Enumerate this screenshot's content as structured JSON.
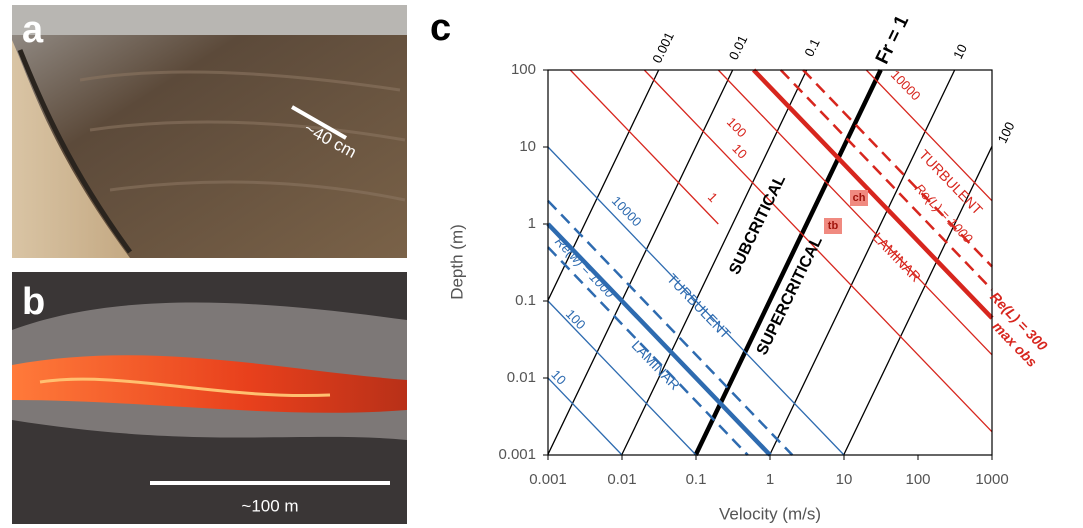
{
  "panels": [
    {
      "letter": "a",
      "scale": "~40 cm"
    },
    {
      "letter": "b",
      "scale": "~100 m"
    }
  ],
  "chart_data": {
    "type": "loglines",
    "panel": "c",
    "x_label": "Velocity (m/s)",
    "y_label": "Depth (m)",
    "xlim": [
      0.001,
      1000
    ],
    "ylim": [
      0.001,
      100
    ],
    "log": true,
    "xticks": [
      0.001,
      0.01,
      0.1,
      1,
      10,
      100,
      1000
    ],
    "yticks": [
      0.001,
      0.01,
      0.1,
      1,
      10,
      100
    ],
    "lines": [
      {
        "color": "#000000",
        "label": "0.001",
        "x": [
          0.001,
          0.0313
        ],
        "y": [
          0.102,
          100
        ]
      },
      {
        "color": "#000000",
        "label": "0.01",
        "x": [
          0.001,
          0.313
        ],
        "y": [
          0.00102,
          100
        ]
      },
      {
        "color": "#000000",
        "label": "0.1",
        "x": [
          0.0099,
          3.13
        ],
        "y": [
          0.001,
          100
        ]
      },
      {
        "color": "#000000",
        "label": "Fr = 1",
        "heavy": true,
        "x": [
          0.099,
          31.3
        ],
        "y": [
          0.001,
          100
        ]
      },
      {
        "color": "#000000",
        "label": "10",
        "x": [
          0.99,
          313
        ],
        "y": [
          0.001,
          100
        ]
      },
      {
        "color": "#000000",
        "label": "100",
        "x": [
          9.9,
          1000
        ],
        "y": [
          0.001,
          10.2
        ]
      },
      {
        "color": "#d7261e",
        "label": "1",
        "x": [
          0.002,
          0.2
        ],
        "y": [
          100,
          1
        ]
      },
      {
        "color": "#d7261e",
        "label": "10",
        "x": [
          0.02,
          1000
        ],
        "y": [
          100,
          0.002
        ]
      },
      {
        "color": "#d7261e",
        "label": "100",
        "x": [
          0.2,
          1000
        ],
        "y": [
          100,
          0.02
        ]
      },
      {
        "color": "#d7261e",
        "heavy": true,
        "x": [
          0.6,
          1000
        ],
        "y": [
          100,
          0.06
        ]
      },
      {
        "color": "#d7261e",
        "dash": true,
        "x": [
          1.4,
          1000
        ],
        "y": [
          100,
          0.14
        ]
      },
      {
        "color": "#d7261e",
        "dash": true,
        "x": [
          2.8,
          1000
        ],
        "y": [
          100,
          0.28
        ]
      },
      {
        "color": "#d7261e",
        "label": "10000",
        "x": [
          20,
          1000
        ],
        "y": [
          100,
          2
        ]
      },
      {
        "color": "#2e6bb0",
        "label": "10",
        "x": [
          0.001,
          0.01
        ],
        "y": [
          0.01,
          0.001
        ]
      },
      {
        "color": "#2e6bb0",
        "label": "100",
        "x": [
          0.001,
          0.1
        ],
        "y": [
          0.1,
          0.001
        ]
      },
      {
        "color": "#2e6bb0",
        "dash": true,
        "x": [
          0.001,
          0.5
        ],
        "y": [
          0.5,
          0.001
        ]
      },
      {
        "color": "#2e6bb0",
        "heavy": true,
        "x": [
          0.001,
          1
        ],
        "y": [
          1,
          0.001
        ]
      },
      {
        "color": "#2e6bb0",
        "dash": true,
        "x": [
          0.001,
          2
        ],
        "y": [
          2,
          0.001
        ]
      },
      {
        "color": "#2e6bb0",
        "label": "10000",
        "x": [
          0.001,
          10
        ],
        "y": [
          10,
          0.001
        ]
      }
    ],
    "annotations": [
      {
        "text": "SUBCRITICAL",
        "color": "#000000"
      },
      {
        "text": "SUPERCRITICAL",
        "color": "#000000"
      },
      {
        "text": "TURBULENT",
        "color": "#d7261e"
      },
      {
        "text": "Re(L) = 1000",
        "color": "#d7261e"
      },
      {
        "text": "LAMINAR",
        "color": "#d7261e"
      },
      {
        "text": "Re(L) = 300",
        "color": "#d7261e"
      },
      {
        "text": "max obs",
        "color": "#d7261e"
      },
      {
        "text": "TURBULENT",
        "color": "#2e6bb0"
      },
      {
        "text": "LAMINAR",
        "color": "#2e6bb0"
      },
      {
        "text": "Re(w) = 1000",
        "color": "#2e6bb0"
      },
      {
        "text": "ch",
        "color": "#a0140c"
      },
      {
        "text": "tb",
        "color": "#a0140c"
      }
    ]
  }
}
